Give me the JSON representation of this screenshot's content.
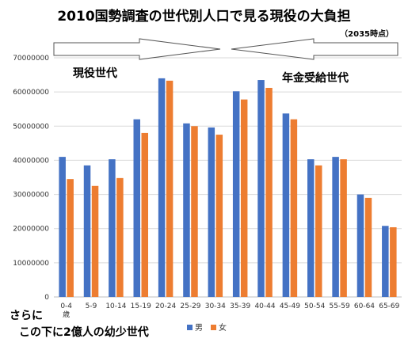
{
  "title": "2010国勢調査の世代別人口で見る現役の大負担",
  "subtitle": "（2035時点）",
  "annotations": {
    "workers": "現役世代",
    "pension": "年金受給世代",
    "footer_line1": "さらに",
    "footer_line2": "この下に2億人の幼少世代"
  },
  "colors": {
    "male": "#4472C4",
    "female": "#ED7D31",
    "grid": "#D9D9D9",
    "arrow": "#555555"
  },
  "chart_data": {
    "type": "bar",
    "categories": [
      "0-4\n歳",
      "5-9",
      "10-14",
      "15-19",
      "20-24",
      "25-29",
      "30-34",
      "35-39",
      "40-44",
      "45-49",
      "50-54",
      "55-59",
      "60-64",
      "65-69"
    ],
    "series": [
      {
        "name": "男",
        "values": [
          41000000,
          38500000,
          40300000,
          52000000,
          64000000,
          50800000,
          49600000,
          60200000,
          63500000,
          53700000,
          40300000,
          41000000,
          30000000,
          20800000
        ]
      },
      {
        "name": "女",
        "values": [
          34500000,
          32500000,
          34800000,
          48000000,
          63300000,
          50000000,
          47500000,
          57800000,
          61200000,
          52000000,
          38500000,
          40300000,
          29000000,
          20400000
        ]
      }
    ],
    "yticks": [
      "0",
      "10000000",
      "20000000",
      "30000000",
      "40000000",
      "50000000",
      "60000000",
      "70000000"
    ],
    "ylim": [
      0,
      70000000
    ],
    "grid": true,
    "legend_position": "bottom"
  }
}
